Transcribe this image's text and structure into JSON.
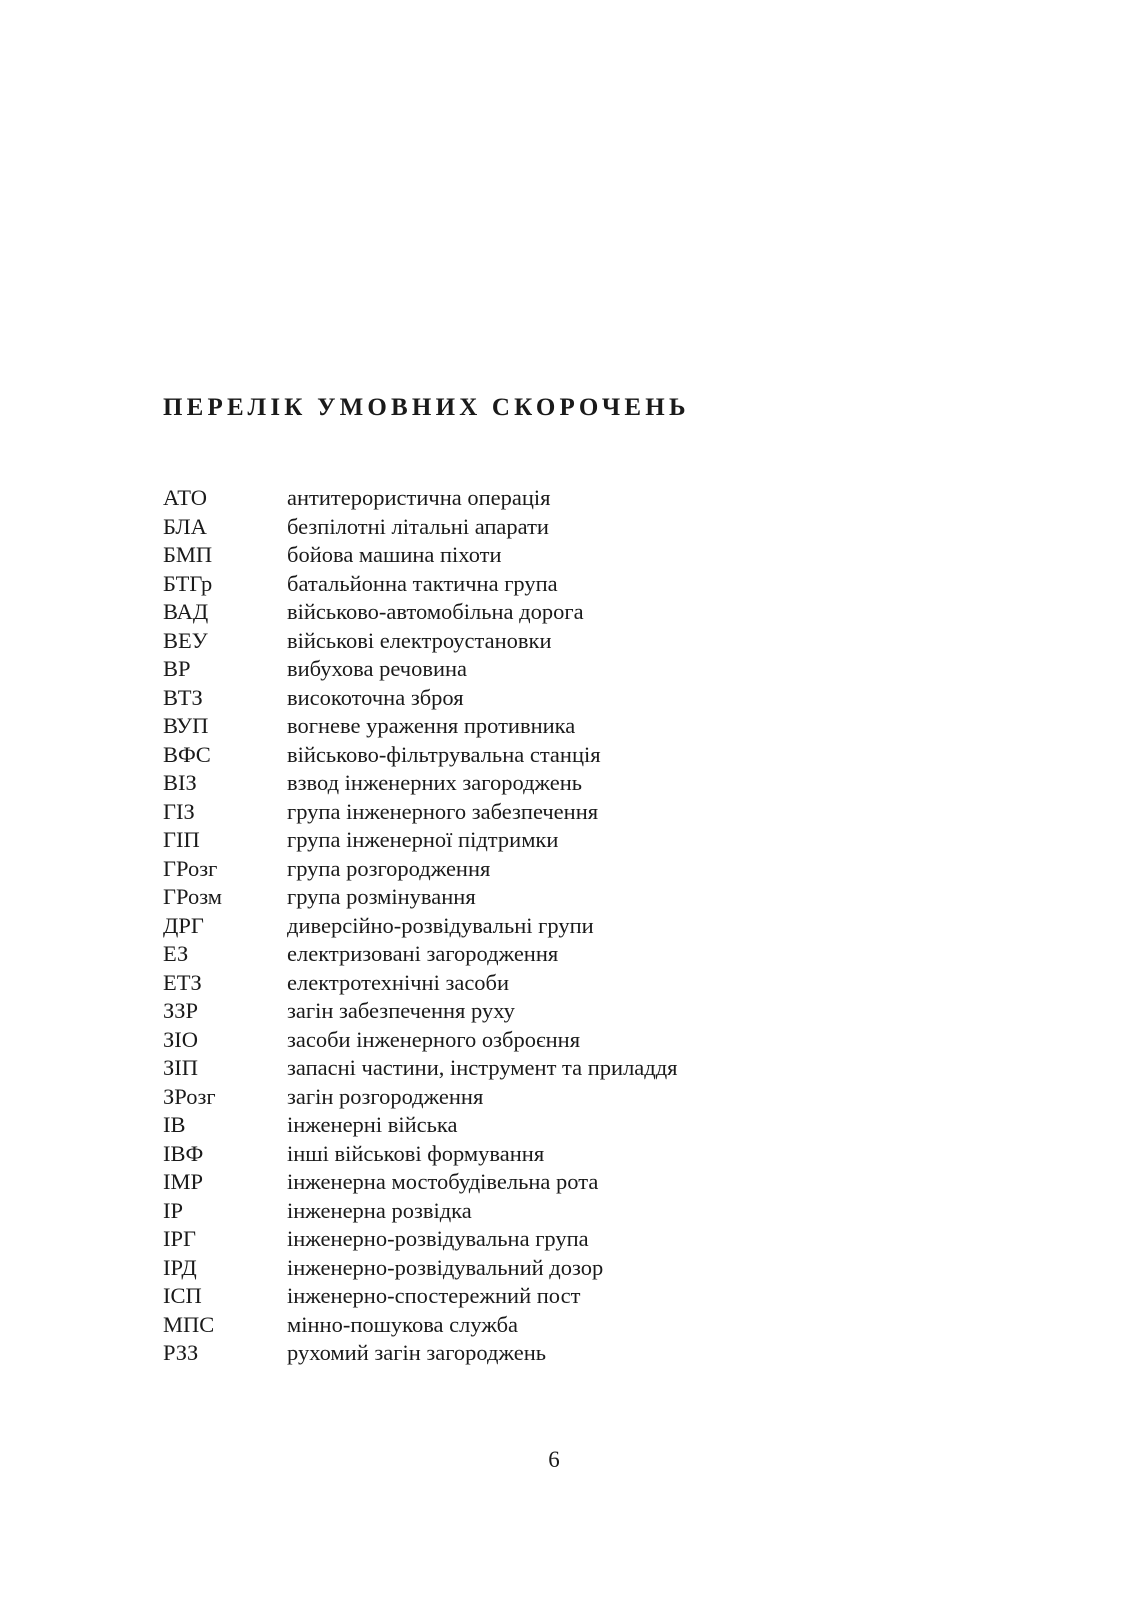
{
  "title": "ПЕРЕЛІК УМОВНИХ СКОРОЧЕНЬ",
  "entries": [
    {
      "abbr": "АТО",
      "desc": "антитерористична операція"
    },
    {
      "abbr": "БЛА",
      "desc": "безпілотні літальні апарати"
    },
    {
      "abbr": "БМП",
      "desc": "бойова машина піхоти"
    },
    {
      "abbr": "БТГр",
      "desc": "батальйонна тактична група"
    },
    {
      "abbr": "ВАД",
      "desc": "військово-автомобільна дорога"
    },
    {
      "abbr": "ВЕУ",
      "desc": "військові електроустановки"
    },
    {
      "abbr": "ВР",
      "desc": "вибухова речовина"
    },
    {
      "abbr": "ВТЗ",
      "desc": "високоточна зброя"
    },
    {
      "abbr": "ВУП",
      "desc": "вогневе ураження противника"
    },
    {
      "abbr": "ВФС",
      "desc": "військово-фільтрувальна станція"
    },
    {
      "abbr": "ВІЗ",
      "desc": "взвод інженерних загороджень"
    },
    {
      "abbr": "ГІЗ",
      "desc": "група інженерного забезпечення"
    },
    {
      "abbr": "ГІП",
      "desc": "група інженерної підтримки"
    },
    {
      "abbr": "ГРозг",
      "desc": "група розгородження"
    },
    {
      "abbr": "ГРозм",
      "desc": "група розмінування"
    },
    {
      "abbr": "ДРГ",
      "desc": "диверсійно-розвідувальні групи"
    },
    {
      "abbr": "ЕЗ",
      "desc": "електризовані загородження"
    },
    {
      "abbr": "ЕТЗ",
      "desc": "електротехнічні засоби"
    },
    {
      "abbr": "ЗЗР",
      "desc": "загін забезпечення руху"
    },
    {
      "abbr": "ЗІО",
      "desc": "засоби інженерного озброєння"
    },
    {
      "abbr": "ЗІП",
      "desc": "запасні частини, інструмент та приладдя"
    },
    {
      "abbr": "ЗРозг",
      "desc": "загін розгородження"
    },
    {
      "abbr": "ІВ",
      "desc": "інженерні війська"
    },
    {
      "abbr": "ІВФ",
      "desc": "інші військові формування"
    },
    {
      "abbr": "ІМР",
      "desc": "інженерна мостобудівельна рота"
    },
    {
      "abbr": "ІР",
      "desc": "інженерна розвідка"
    },
    {
      "abbr": "ІРГ",
      "desc": "інженерно-розвідувальна група"
    },
    {
      "abbr": "ІРД",
      "desc": "інженерно-розвідувальний дозор"
    },
    {
      "abbr": "ІСП",
      "desc": "інженерно-спостережний пост"
    },
    {
      "abbr": "МПС",
      "desc": "мінно-пошукова служба"
    },
    {
      "abbr": "РЗЗ",
      "desc": "рухомий загін загороджень"
    }
  ],
  "page_number": "6"
}
